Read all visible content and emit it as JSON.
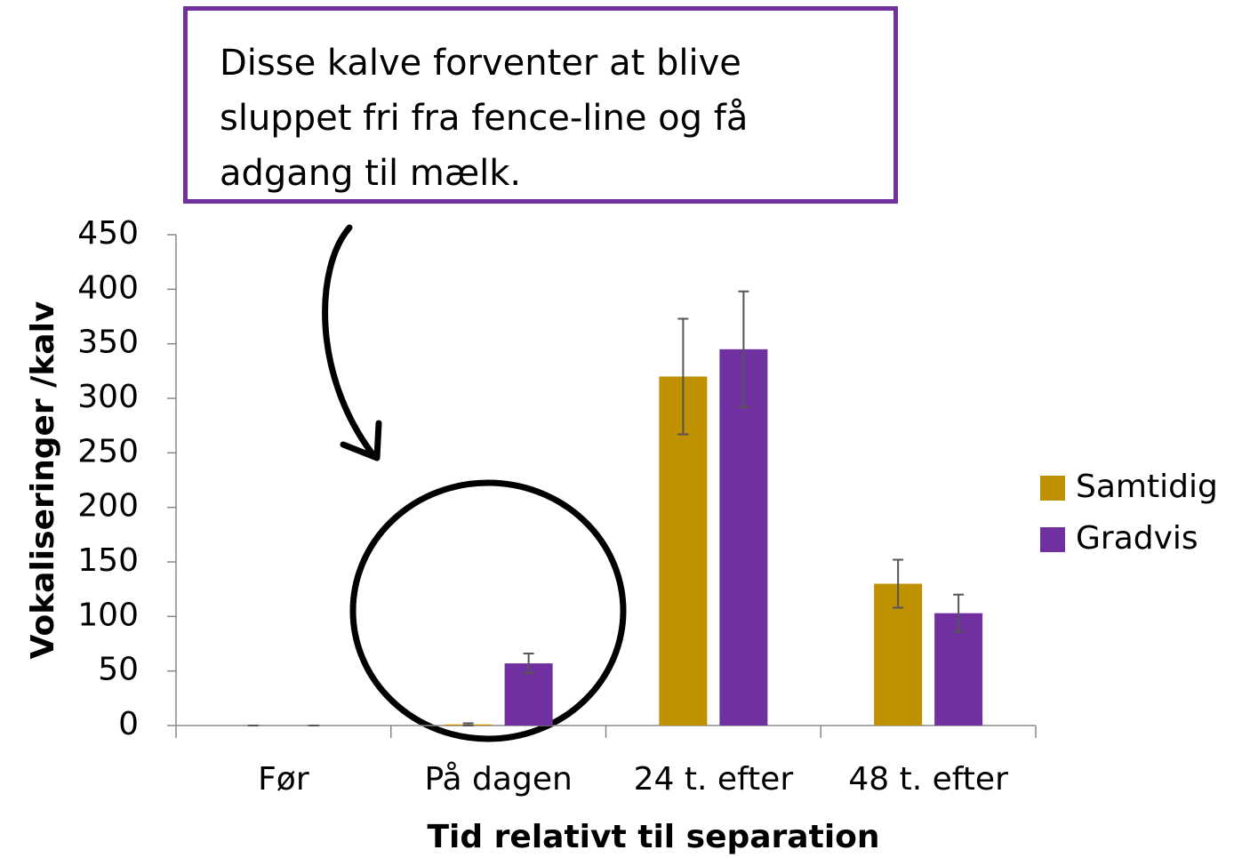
{
  "chart_data": {
    "type": "bar",
    "annotation": "Disse kalve forventer at blive sluppet fri fra fence-line og få adgang til mælk.",
    "categories": [
      "Før",
      "På dagen",
      "24 t. efter",
      "48 t. efter"
    ],
    "series": [
      {
        "name": "Samtidig",
        "color": "#bf9000",
        "values": [
          0,
          1,
          320,
          130
        ],
        "errors": [
          0,
          1,
          53,
          22
        ]
      },
      {
        "name": "Gradvis",
        "color": "#7030a0",
        "values": [
          0,
          57,
          345,
          103
        ],
        "errors": [
          0,
          9,
          53,
          17
        ]
      }
    ],
    "ylim": [
      0,
      450
    ],
    "yticks": [
      0,
      50,
      100,
      150,
      200,
      250,
      300,
      350,
      400,
      450
    ],
    "y_label": "Vokaliseringer /kalv",
    "x_label": "Tid relativt til separation",
    "legend": "right",
    "grid": false
  }
}
